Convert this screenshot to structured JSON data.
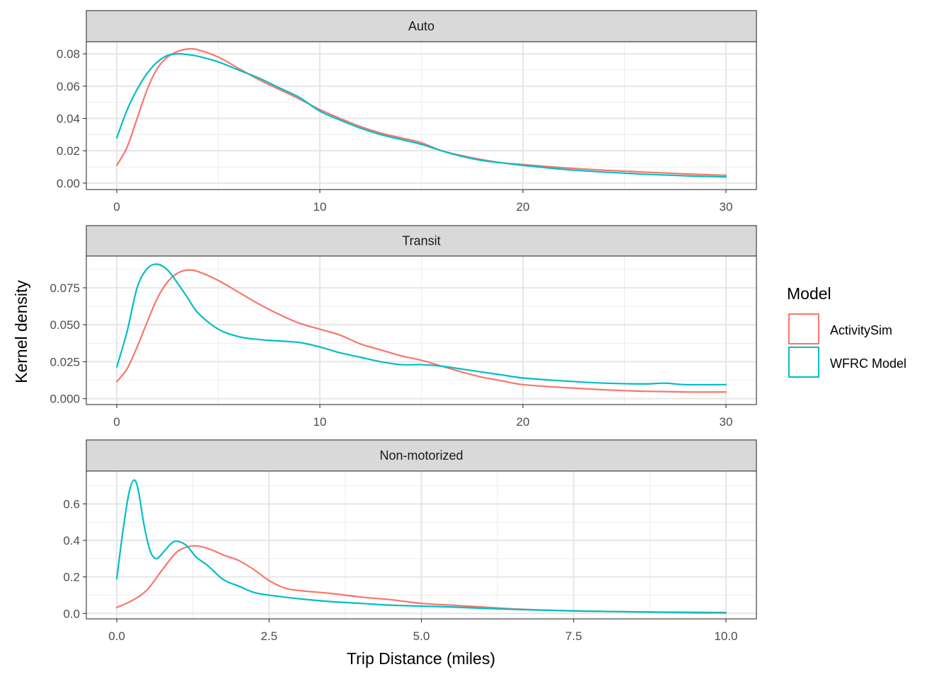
{
  "colors": {
    "ActivitySim": "#F8766D",
    "WFRC Model": "#00BFC4"
  },
  "chart_data": {
    "type": "line",
    "xlabel": "Trip Distance (miles)",
    "ylabel": "Kernel density",
    "legend": {
      "title": "Model",
      "entries": [
        "ActivitySim",
        "WFRC Model"
      ],
      "position": "right"
    },
    "grid": true,
    "panels": [
      {
        "title": "Auto",
        "xlim": [
          -1.5,
          31.5
        ],
        "ylim": [
          -0.004,
          0.0875
        ],
        "xticks": [
          0,
          10,
          20,
          30
        ],
        "xtick_labels": [
          "0",
          "10",
          "20",
          "30"
        ],
        "yticks": [
          0,
          0.02,
          0.04,
          0.06,
          0.08
        ],
        "ytick_labels": [
          "0.00",
          "0.02",
          "0.04",
          "0.06",
          "0.08"
        ],
        "series": [
          {
            "name": "ActivitySim",
            "x": [
              0,
              0.5,
              1,
              1.5,
              2,
              2.5,
              3,
              3.5,
              4,
              5,
              6,
              7,
              8,
              9,
              10,
              11,
              12,
              13,
              14,
              15,
              16,
              17,
              18,
              19,
              20,
              22,
              24,
              26,
              28,
              30
            ],
            "y": [
              0.011,
              0.022,
              0.04,
              0.058,
              0.071,
              0.078,
              0.0815,
              0.083,
              0.0825,
              0.078,
              0.071,
              0.064,
              0.058,
              0.052,
              0.0455,
              0.04,
              0.035,
              0.031,
              0.028,
              0.025,
              0.02,
              0.017,
              0.0145,
              0.0125,
              0.0115,
              0.0095,
              0.008,
              0.0068,
              0.0057,
              0.0048
            ]
          },
          {
            "name": "WFRC Model",
            "x": [
              0,
              0.5,
              1,
              1.5,
              2,
              2.5,
              3,
              3.5,
              4,
              5,
              6,
              7,
              8,
              9,
              10,
              11,
              12,
              13,
              14,
              15,
              16,
              17,
              18,
              19,
              20,
              22,
              24,
              26,
              28,
              30
            ],
            "y": [
              0.028,
              0.045,
              0.058,
              0.068,
              0.075,
              0.079,
              0.08,
              0.0795,
              0.0785,
              0.075,
              0.07,
              0.065,
              0.059,
              0.053,
              0.0445,
              0.039,
              0.034,
              0.03,
              0.027,
              0.024,
              0.02,
              0.0165,
              0.014,
              0.0125,
              0.011,
              0.0085,
              0.0068,
              0.0055,
              0.0045,
              0.0038
            ]
          }
        ]
      },
      {
        "title": "Transit",
        "xlim": [
          -1.5,
          31.5
        ],
        "ylim": [
          -0.004,
          0.0965
        ],
        "xticks": [
          0,
          10,
          20,
          30
        ],
        "xtick_labels": [
          "0",
          "10",
          "20",
          "30"
        ],
        "yticks": [
          0,
          0.025,
          0.05,
          0.075
        ],
        "ytick_labels": [
          "0.000",
          "0.025",
          "0.050",
          "0.075"
        ],
        "series": [
          {
            "name": "ActivitySim",
            "x": [
              0,
              0.5,
              1,
              1.5,
              2,
              2.5,
              3,
              3.5,
              4,
              5,
              6,
              7,
              8,
              9,
              10,
              11,
              12,
              13,
              14,
              15,
              16,
              17,
              18,
              19,
              20,
              22,
              24,
              26,
              28,
              30
            ],
            "y": [
              0.0115,
              0.02,
              0.035,
              0.052,
              0.068,
              0.079,
              0.085,
              0.087,
              0.086,
              0.08,
              0.072,
              0.064,
              0.057,
              0.051,
              0.047,
              0.043,
              0.037,
              0.033,
              0.029,
              0.026,
              0.022,
              0.018,
              0.0145,
              0.012,
              0.0095,
              0.0075,
              0.006,
              0.005,
              0.0045,
              0.0045
            ]
          },
          {
            "name": "WFRC Model",
            "x": [
              0,
              0.5,
              1,
              1.5,
              2,
              2.5,
              3,
              3.5,
              4,
              5,
              6,
              7,
              8,
              9,
              10,
              11,
              12,
              13,
              14,
              15,
              16,
              17,
              18,
              19,
              20,
              22,
              24,
              26,
              27,
              28,
              30
            ],
            "y": [
              0.0215,
              0.045,
              0.075,
              0.088,
              0.091,
              0.087,
              0.078,
              0.068,
              0.058,
              0.047,
              0.042,
              0.04,
              0.039,
              0.038,
              0.035,
              0.031,
              0.028,
              0.025,
              0.023,
              0.023,
              0.022,
              0.02,
              0.018,
              0.016,
              0.014,
              0.012,
              0.0105,
              0.01,
              0.0105,
              0.0095,
              0.0095
            ]
          }
        ]
      },
      {
        "title": "Non-motorized",
        "xlim": [
          -0.5,
          10.5
        ],
        "ylim": [
          -0.03,
          0.78
        ],
        "xticks": [
          0,
          2.5,
          5,
          7.5,
          10
        ],
        "xtick_labels": [
          "0.0",
          "2.5",
          "5.0",
          "7.5",
          "10.0"
        ],
        "yticks": [
          0,
          0.2,
          0.4,
          0.6
        ],
        "ytick_labels": [
          "0.0",
          "0.2",
          "0.4",
          "0.6"
        ],
        "series": [
          {
            "name": "ActivitySim",
            "x": [
              0,
              0.25,
              0.5,
              0.75,
              1.0,
              1.25,
              1.5,
              1.75,
              2.0,
              2.25,
              2.5,
              2.75,
              3.0,
              3.5,
              4.0,
              4.5,
              5.0,
              5.5,
              6.0,
              6.5,
              7.0,
              7.5,
              8.0,
              8.5,
              9.0,
              9.5,
              10.0
            ],
            "y": [
              0.033,
              0.07,
              0.13,
              0.24,
              0.34,
              0.37,
              0.355,
              0.32,
              0.29,
              0.24,
              0.18,
              0.14,
              0.125,
              0.11,
              0.09,
              0.075,
              0.055,
              0.045,
              0.035,
              0.025,
              0.018,
              0.013,
              0.011,
              0.009,
              0.007,
              0.006,
              0.005
            ]
          },
          {
            "name": "WFRC Model",
            "x": [
              0,
              0.1,
              0.2,
              0.28,
              0.35,
              0.45,
              0.55,
              0.65,
              0.75,
              0.9,
              1.0,
              1.15,
              1.3,
              1.5,
              1.75,
              2.0,
              2.25,
              2.5,
              3.0,
              3.5,
              4.0,
              4.5,
              5.0,
              5.5,
              6.0,
              6.5,
              7.0,
              7.5,
              8.0,
              8.5,
              9.0,
              9.5,
              10.0
            ],
            "y": [
              0.19,
              0.45,
              0.66,
              0.73,
              0.68,
              0.48,
              0.34,
              0.3,
              0.33,
              0.385,
              0.395,
              0.37,
              0.31,
              0.26,
              0.185,
              0.15,
              0.115,
              0.1,
              0.08,
              0.065,
              0.055,
              0.045,
              0.04,
              0.035,
              0.028,
              0.022,
              0.018,
              0.014,
              0.011,
              0.008,
              0.006,
              0.004,
              0.003
            ]
          }
        ]
      }
    ]
  }
}
